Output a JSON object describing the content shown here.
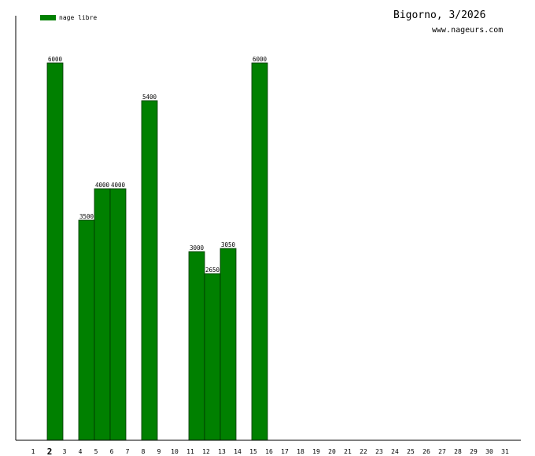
{
  "header": {
    "title": "Bigorno, 3/2026",
    "site": "www.nageurs.com"
  },
  "colors": {
    "bar_fill": "#008000",
    "bar_stroke": "#003300",
    "axis": "#000000"
  },
  "chart_data": {
    "type": "bar",
    "categories": [
      "1",
      "2",
      "3",
      "4",
      "5",
      "6",
      "7",
      "8",
      "9",
      "10",
      "11",
      "12",
      "13",
      "14",
      "15",
      "16",
      "17",
      "18",
      "19",
      "20",
      "21",
      "22",
      "23",
      "24",
      "25",
      "26",
      "27",
      "28",
      "29",
      "30",
      "31"
    ],
    "highlighted_category": "2",
    "series": [
      {
        "name": "nage libre",
        "values": [
          null,
          6000,
          null,
          3500,
          4000,
          4000,
          null,
          5400,
          null,
          null,
          3000,
          2650,
          3050,
          null,
          6000,
          null,
          null,
          null,
          null,
          null,
          null,
          null,
          null,
          null,
          null,
          null,
          null,
          null,
          null,
          null,
          null
        ]
      }
    ],
    "ylim": [
      0,
      6750
    ],
    "grid": false,
    "legend": "top-left"
  }
}
